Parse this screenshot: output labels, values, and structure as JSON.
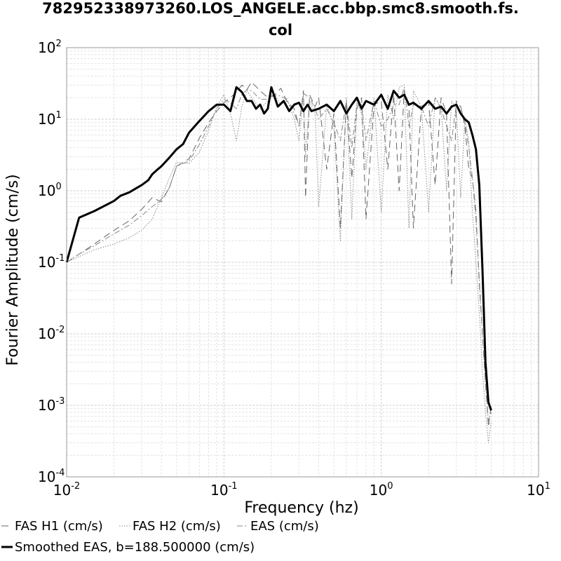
{
  "chart_data": {
    "type": "line",
    "title_line1": "782952338973260.LOS_ANGELE.acc.bbp.smc8.smooth.fs.",
    "title_line2": "col",
    "xlabel": "Frequency (hz)",
    "ylabel": "Fourier Amplitude (cm/s)",
    "x_scale": "log",
    "y_scale": "log",
    "xlim": [
      0.01,
      10
    ],
    "ylim": [
      0.0001,
      100
    ],
    "x_ticks": [
      {
        "base": "10",
        "exp": "-2"
      },
      {
        "base": "10",
        "exp": "-1"
      },
      {
        "base": "10",
        "exp": "0"
      },
      {
        "base": "10",
        "exp": "1"
      }
    ],
    "y_ticks": [
      {
        "base": "10",
        "exp": "2"
      },
      {
        "base": "10",
        "exp": "1"
      },
      {
        "base": "10",
        "exp": "0"
      },
      {
        "base": "10",
        "exp": "-1"
      },
      {
        "base": "10",
        "exp": "-2"
      },
      {
        "base": "10",
        "exp": "-3"
      },
      {
        "base": "10",
        "exp": "-4"
      }
    ],
    "grid": true,
    "legend_position": "bottom",
    "series": [
      {
        "name": "FAS H1 (cm/s)",
        "style": "dashed",
        "color": "#666666",
        "x": [
          0.01,
          0.012,
          0.015,
          0.02,
          0.025,
          0.03,
          0.035,
          0.04,
          0.045,
          0.05,
          0.06,
          0.07,
          0.08,
          0.09,
          0.1,
          0.11,
          0.12,
          0.13,
          0.14,
          0.15,
          0.17,
          0.19,
          0.21,
          0.23,
          0.25,
          0.28,
          0.3,
          0.32,
          0.33,
          0.35,
          0.38,
          0.4,
          0.45,
          0.5,
          0.55,
          0.6,
          0.65,
          0.7,
          0.75,
          0.8,
          0.9,
          1.0,
          1.1,
          1.2,
          1.3,
          1.4,
          1.5,
          1.6,
          1.8,
          2.0,
          2.2,
          2.4,
          2.6,
          2.8,
          3.0,
          3.2,
          3.4,
          3.6,
          3.8,
          4.0,
          4.2,
          4.4,
          4.6,
          4.8,
          5.0
        ],
        "y": [
          0.1,
          0.13,
          0.18,
          0.28,
          0.38,
          0.55,
          0.8,
          0.7,
          1.1,
          2.2,
          2.8,
          5.5,
          9,
          13,
          17,
          20,
          24,
          30,
          26,
          33,
          25,
          20,
          22,
          27,
          18,
          14,
          8,
          25,
          0.8,
          22,
          15,
          20,
          2,
          12,
          0.3,
          18,
          1.5,
          14,
          20,
          0.4,
          16,
          18,
          2,
          22,
          1,
          25,
          14,
          0.3,
          15,
          18,
          1.2,
          20,
          12,
          0.05,
          18,
          15,
          8,
          2,
          1.5,
          0.5,
          0.05,
          0.01,
          0.002,
          0.0005,
          0.001
        ]
      },
      {
        "name": "FAS H2 (cm/s)",
        "style": "dotted",
        "color": "#888888",
        "x": [
          0.01,
          0.012,
          0.015,
          0.02,
          0.025,
          0.03,
          0.035,
          0.04,
          0.045,
          0.05,
          0.06,
          0.07,
          0.08,
          0.09,
          0.1,
          0.11,
          0.12,
          0.13,
          0.14,
          0.15,
          0.17,
          0.19,
          0.21,
          0.23,
          0.25,
          0.28,
          0.3,
          0.32,
          0.33,
          0.35,
          0.38,
          0.4,
          0.45,
          0.5,
          0.55,
          0.6,
          0.65,
          0.7,
          0.75,
          0.8,
          0.9,
          1.0,
          1.1,
          1.2,
          1.3,
          1.4,
          1.5,
          1.6,
          1.8,
          2.0,
          2.2,
          2.4,
          2.6,
          2.8,
          3.0,
          3.2,
          3.4,
          3.6,
          3.8,
          4.0,
          4.2,
          4.4,
          4.6,
          4.8,
          5.0
        ],
        "y": [
          0.1,
          0.12,
          0.15,
          0.18,
          0.22,
          0.28,
          0.4,
          0.8,
          1.5,
          2.5,
          2.4,
          3.5,
          7,
          15,
          22,
          12,
          5,
          15,
          25,
          20,
          14,
          18,
          22,
          16,
          20,
          10,
          5,
          22,
          3,
          18,
          12,
          0.6,
          16,
          8,
          0.2,
          20,
          0.4,
          18,
          12,
          2,
          20,
          0.5,
          22,
          10,
          28,
          30,
          0.3,
          25,
          15,
          0.5,
          20,
          15,
          1,
          18,
          14,
          0.8,
          10,
          5,
          0.5,
          0.1,
          0.02,
          0.003,
          0.0008,
          0.0003,
          0.0006
        ]
      },
      {
        "name": "EAS (cm/s)",
        "style": "dashdot",
        "color": "#888888",
        "x": [
          0.01,
          0.012,
          0.015,
          0.02,
          0.025,
          0.03,
          0.035,
          0.04,
          0.045,
          0.05,
          0.06,
          0.07,
          0.08,
          0.09,
          0.1,
          0.11,
          0.12,
          0.13,
          0.14,
          0.15,
          0.17,
          0.19,
          0.21,
          0.23,
          0.25,
          0.28,
          0.3,
          0.32,
          0.35,
          0.38,
          0.4,
          0.45,
          0.5,
          0.55,
          0.6,
          0.65,
          0.7,
          0.75,
          0.8,
          0.9,
          1.0,
          1.1,
          1.2,
          1.3,
          1.4,
          1.5,
          1.6,
          1.8,
          2.0,
          2.2,
          2.4,
          2.6,
          2.8,
          3.0,
          3.2,
          3.4,
          3.6,
          3.8,
          4.0,
          4.2,
          4.4,
          4.6,
          4.8,
          5.0
        ],
        "y": [
          0.1,
          0.13,
          0.17,
          0.25,
          0.33,
          0.45,
          0.6,
          0.75,
          1.1,
          2.2,
          2.6,
          4.5,
          8,
          14,
          19,
          17,
          14,
          22,
          26,
          25,
          19,
          19,
          22,
          21,
          19,
          12,
          8,
          23,
          20,
          14,
          10,
          14,
          9,
          5,
          18,
          4,
          16,
          16,
          5,
          18,
          8,
          10,
          16,
          16,
          28,
          8,
          16,
          15,
          8,
          20,
          14,
          8,
          5,
          16,
          15,
          9,
          4,
          1.5,
          0.4,
          0.06,
          0.01,
          0.002,
          0.0006,
          0.0008
        ]
      },
      {
        "name": "Smoothed EAS, b=188.500000 (cm/s)",
        "style": "solid",
        "color": "#000000",
        "x": [
          0.01,
          0.012,
          0.015,
          0.02,
          0.022,
          0.025,
          0.028,
          0.03,
          0.033,
          0.035,
          0.038,
          0.04,
          0.045,
          0.05,
          0.055,
          0.06,
          0.07,
          0.08,
          0.09,
          0.1,
          0.11,
          0.12,
          0.13,
          0.14,
          0.15,
          0.16,
          0.17,
          0.18,
          0.19,
          0.2,
          0.22,
          0.24,
          0.26,
          0.28,
          0.3,
          0.32,
          0.34,
          0.36,
          0.4,
          0.45,
          0.5,
          0.55,
          0.6,
          0.65,
          0.7,
          0.75,
          0.8,
          0.9,
          1.0,
          1.1,
          1.2,
          1.3,
          1.4,
          1.5,
          1.6,
          1.8,
          2.0,
          2.2,
          2.4,
          2.6,
          2.8,
          3.0,
          3.2,
          3.4,
          3.6,
          3.8,
          4.0,
          4.2,
          4.4,
          4.6,
          4.8,
          5.0
        ],
        "y": [
          0.1,
          0.42,
          0.52,
          0.72,
          0.85,
          0.95,
          1.1,
          1.2,
          1.4,
          1.7,
          2.0,
          2.2,
          2.9,
          3.8,
          4.5,
          6.5,
          9.5,
          13,
          16,
          16,
          13,
          28,
          24,
          18,
          18,
          14,
          16,
          12,
          14,
          28,
          15,
          18,
          13,
          16,
          17,
          13,
          16,
          13,
          14,
          16,
          13,
          18,
          12,
          16,
          20,
          14,
          18,
          16,
          22,
          14,
          25,
          20,
          22,
          16,
          17,
          14,
          18,
          14,
          15,
          12,
          15,
          16,
          12,
          10,
          9,
          6,
          3.8,
          1.2,
          0.08,
          0.004,
          0.0011,
          0.00085
        ]
      }
    ]
  }
}
